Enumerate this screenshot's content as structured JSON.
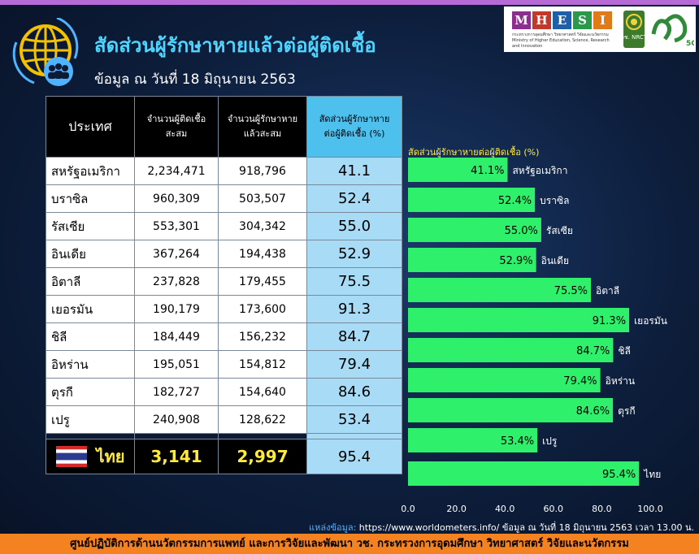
{
  "header": {
    "title": "สัดส่วนผู้รักษาหายแล้วต่อผู้ติดเชื้อ",
    "subtitle": "ข้อมูล ณ วันที่ 18 มิถุนายน 2563"
  },
  "logos": {
    "mhesi_letters": [
      "M",
      "H",
      "E",
      "S",
      "I"
    ],
    "mhesi_colors": [
      "#8a2f8d",
      "#c0392b",
      "#1e5fa8",
      "#2a9a4a",
      "#e07b1a"
    ],
    "mhesi_line1": "กระทรวงการอุดมศึกษา วิทยาศาสตร์ วิจัยและนวัตกรรม",
    "mhesi_line2": "Ministry of Higher Education, Science, Research and Innovation",
    "nrct_text": "วช. NRCT",
    "fiveg_text": "5G"
  },
  "table": {
    "headers": {
      "country": "ประเทศ",
      "cases_l1": "จำนวนผู้ติดเชื้อ",
      "cases_l2": "สะสม",
      "recovered_l1": "จำนวนผู้รักษาหาย",
      "recovered_l2": "แล้วสะสม",
      "ratio_l1": "สัดส่วนผู้รักษาหาย",
      "ratio_l2": "ต่อผู้ติดเชื้อ (%)"
    },
    "rows": [
      {
        "country": "สหรัฐอเมริกา",
        "cases": "2,234,471",
        "recovered": "918,796",
        "ratio": "41.1"
      },
      {
        "country": "บราซิล",
        "cases": "960,309",
        "recovered": "503,507",
        "ratio": "52.4"
      },
      {
        "country": "รัสเซีย",
        "cases": "553,301",
        "recovered": "304,342",
        "ratio": "55.0"
      },
      {
        "country": "อินเดีย",
        "cases": "367,264",
        "recovered": "194,438",
        "ratio": "52.9"
      },
      {
        "country": "อิตาลี",
        "cases": "237,828",
        "recovered": "179,455",
        "ratio": "75.5"
      },
      {
        "country": "เยอรมัน",
        "cases": "190,179",
        "recovered": "173,600",
        "ratio": "91.3"
      },
      {
        "country": "ชิลี",
        "cases": "184,449",
        "recovered": "156,232",
        "ratio": "84.7"
      },
      {
        "country": "อิหร่าน",
        "cases": "195,051",
        "recovered": "154,812",
        "ratio": "79.4"
      },
      {
        "country": "ตุรกี",
        "cases": "182,727",
        "recovered": "154,640",
        "ratio": "84.6"
      },
      {
        "country": "เปรู",
        "cases": "240,908",
        "recovered": "128,622",
        "ratio": "53.4"
      }
    ],
    "thai": {
      "country": "ไทย",
      "cases": "3,141",
      "recovered": "2,997",
      "ratio": "95.4"
    }
  },
  "chart_data": {
    "type": "bar",
    "orientation": "horizontal",
    "title": "สัดส่วนผู้รักษาหายต่อผู้ติดเชื้อ (%)",
    "categories": [
      "สหรัฐอเมริกา",
      "บราซิล",
      "รัสเซีย",
      "อินเดีย",
      "อิตาลี",
      "เยอรมัน",
      "ชิลี",
      "อิหร่าน",
      "ตุรกี",
      "เปรู",
      "ไทย"
    ],
    "values": [
      41.1,
      52.4,
      55.0,
      52.9,
      75.5,
      91.3,
      84.7,
      79.4,
      84.6,
      53.4,
      95.4
    ],
    "value_labels": [
      "41.1%",
      "52.4%",
      "55.0%",
      "52.9%",
      "75.5%",
      "91.3%",
      "84.7%",
      "79.4%",
      "84.6%",
      "53.4%",
      "95.4%"
    ],
    "xlim": [
      0,
      100
    ],
    "xticks": [
      "0.0",
      "20.0",
      "40.0",
      "60.0",
      "80.0",
      "100.0"
    ],
    "bar_color": "#2ef06a"
  },
  "source": {
    "label": "แหล่งข้อมูล:",
    "text": "https://www.worldometers.info/ ข้อมูล ณ วันที่ 18 มิถุนายน 2563 เวลา 13.00 น."
  },
  "footer": "ศูนย์ปฏิบัติการด้านนวัตกรรมการแพทย์ และการวิจัยและพัฒนา วช.  กระทรวงการอุดมศึกษา วิทยาศาสตร์ วิจัยและนวัตกรรม"
}
